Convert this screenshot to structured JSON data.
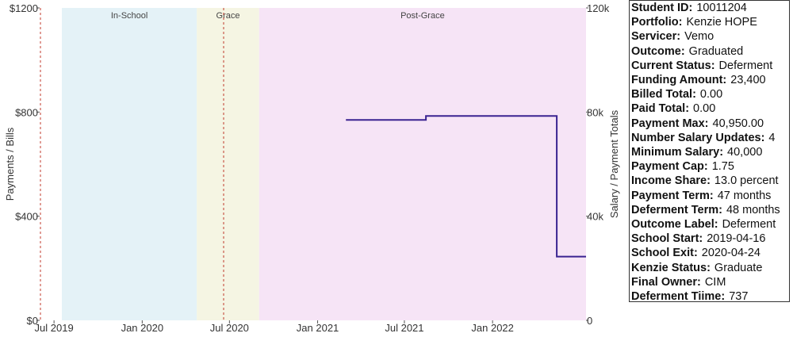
{
  "chart_data": {
    "type": "line",
    "x_ticks": [
      "Jul 2019",
      "Jan 2020",
      "Jul 2020",
      "Jan 2021",
      "Jul 2021",
      "Jan 2022"
    ],
    "x_range": [
      "2019-06-01",
      "2022-07-15"
    ],
    "left_axis": {
      "label": "Payments / Bills",
      "ticks": [
        "$0",
        "$400",
        "$800",
        "$1200"
      ],
      "range": [
        0,
        1200
      ]
    },
    "right_axis": {
      "label": "Salary / Payment Totals",
      "ticks": [
        "0",
        "40k",
        "80k",
        "120k"
      ],
      "range": [
        0,
        120000
      ]
    },
    "phases": [
      {
        "label": "In-School",
        "start": "2019-04-16",
        "end": "2020-04-24",
        "color": "#e4f2f7"
      },
      {
        "label": "Grace",
        "start": "2020-04-24",
        "end": "2020-09-01",
        "color": "#f5f5e3"
      },
      {
        "label": "Post-Grace",
        "start": "2020-09-01",
        "end": "2022-07-15",
        "color": "#f6e4f6"
      }
    ],
    "event_lines": [
      "2019-04-16",
      "2020-04-24"
    ],
    "series": [
      {
        "axis": "right",
        "color": "#3a2391",
        "points": [
          {
            "x": "2021-03-01",
            "y": 77000
          },
          {
            "x": "2021-08-15",
            "y": 77000
          },
          {
            "x": "2021-08-15",
            "y": 78500
          },
          {
            "x": "2022-05-15",
            "y": 78500
          },
          {
            "x": "2022-05-15",
            "y": 24500
          },
          {
            "x": "2022-07-15",
            "y": 24500
          }
        ]
      }
    ]
  },
  "info": [
    {
      "key": "Student ID:",
      "value": "10011204"
    },
    {
      "key": "Portfolio:",
      "value": "Kenzie HOPE"
    },
    {
      "key": "Servicer:",
      "value": "Vemo"
    },
    {
      "key": "Outcome:",
      "value": "Graduated"
    },
    {
      "key": "Current Status:",
      "value": "Deferment"
    },
    {
      "key": "Funding Amount:",
      "value": "23,400"
    },
    {
      "key": "Billed Total:",
      "value": "0.00"
    },
    {
      "key": "Paid Total:",
      "value": "0.00"
    },
    {
      "key": "Payment Max:",
      "value": "40,950.00"
    },
    {
      "key": "Number Salary Updates:",
      "value": "4"
    },
    {
      "key": "Minimum Salary:",
      "value": "40,000"
    },
    {
      "key": "Payment Cap:",
      "value": "1.75"
    },
    {
      "key": "Income Share:",
      "value": "13.0 percent"
    },
    {
      "key": "Payment Term:",
      "value": "47 months"
    },
    {
      "key": "Deferment Term:",
      "value": "48 months"
    },
    {
      "key": "Outcome Label:",
      "value": "Deferment"
    },
    {
      "key": "School Start:",
      "value": "2019-04-16"
    },
    {
      "key": "School Exit:",
      "value": "2020-04-24"
    },
    {
      "key": "Kenzie Status:",
      "value": "Graduate"
    },
    {
      "key": "Final Owner:",
      "value": "CIM"
    },
    {
      "key": "Deferment Tiime:",
      "value": "737"
    }
  ]
}
